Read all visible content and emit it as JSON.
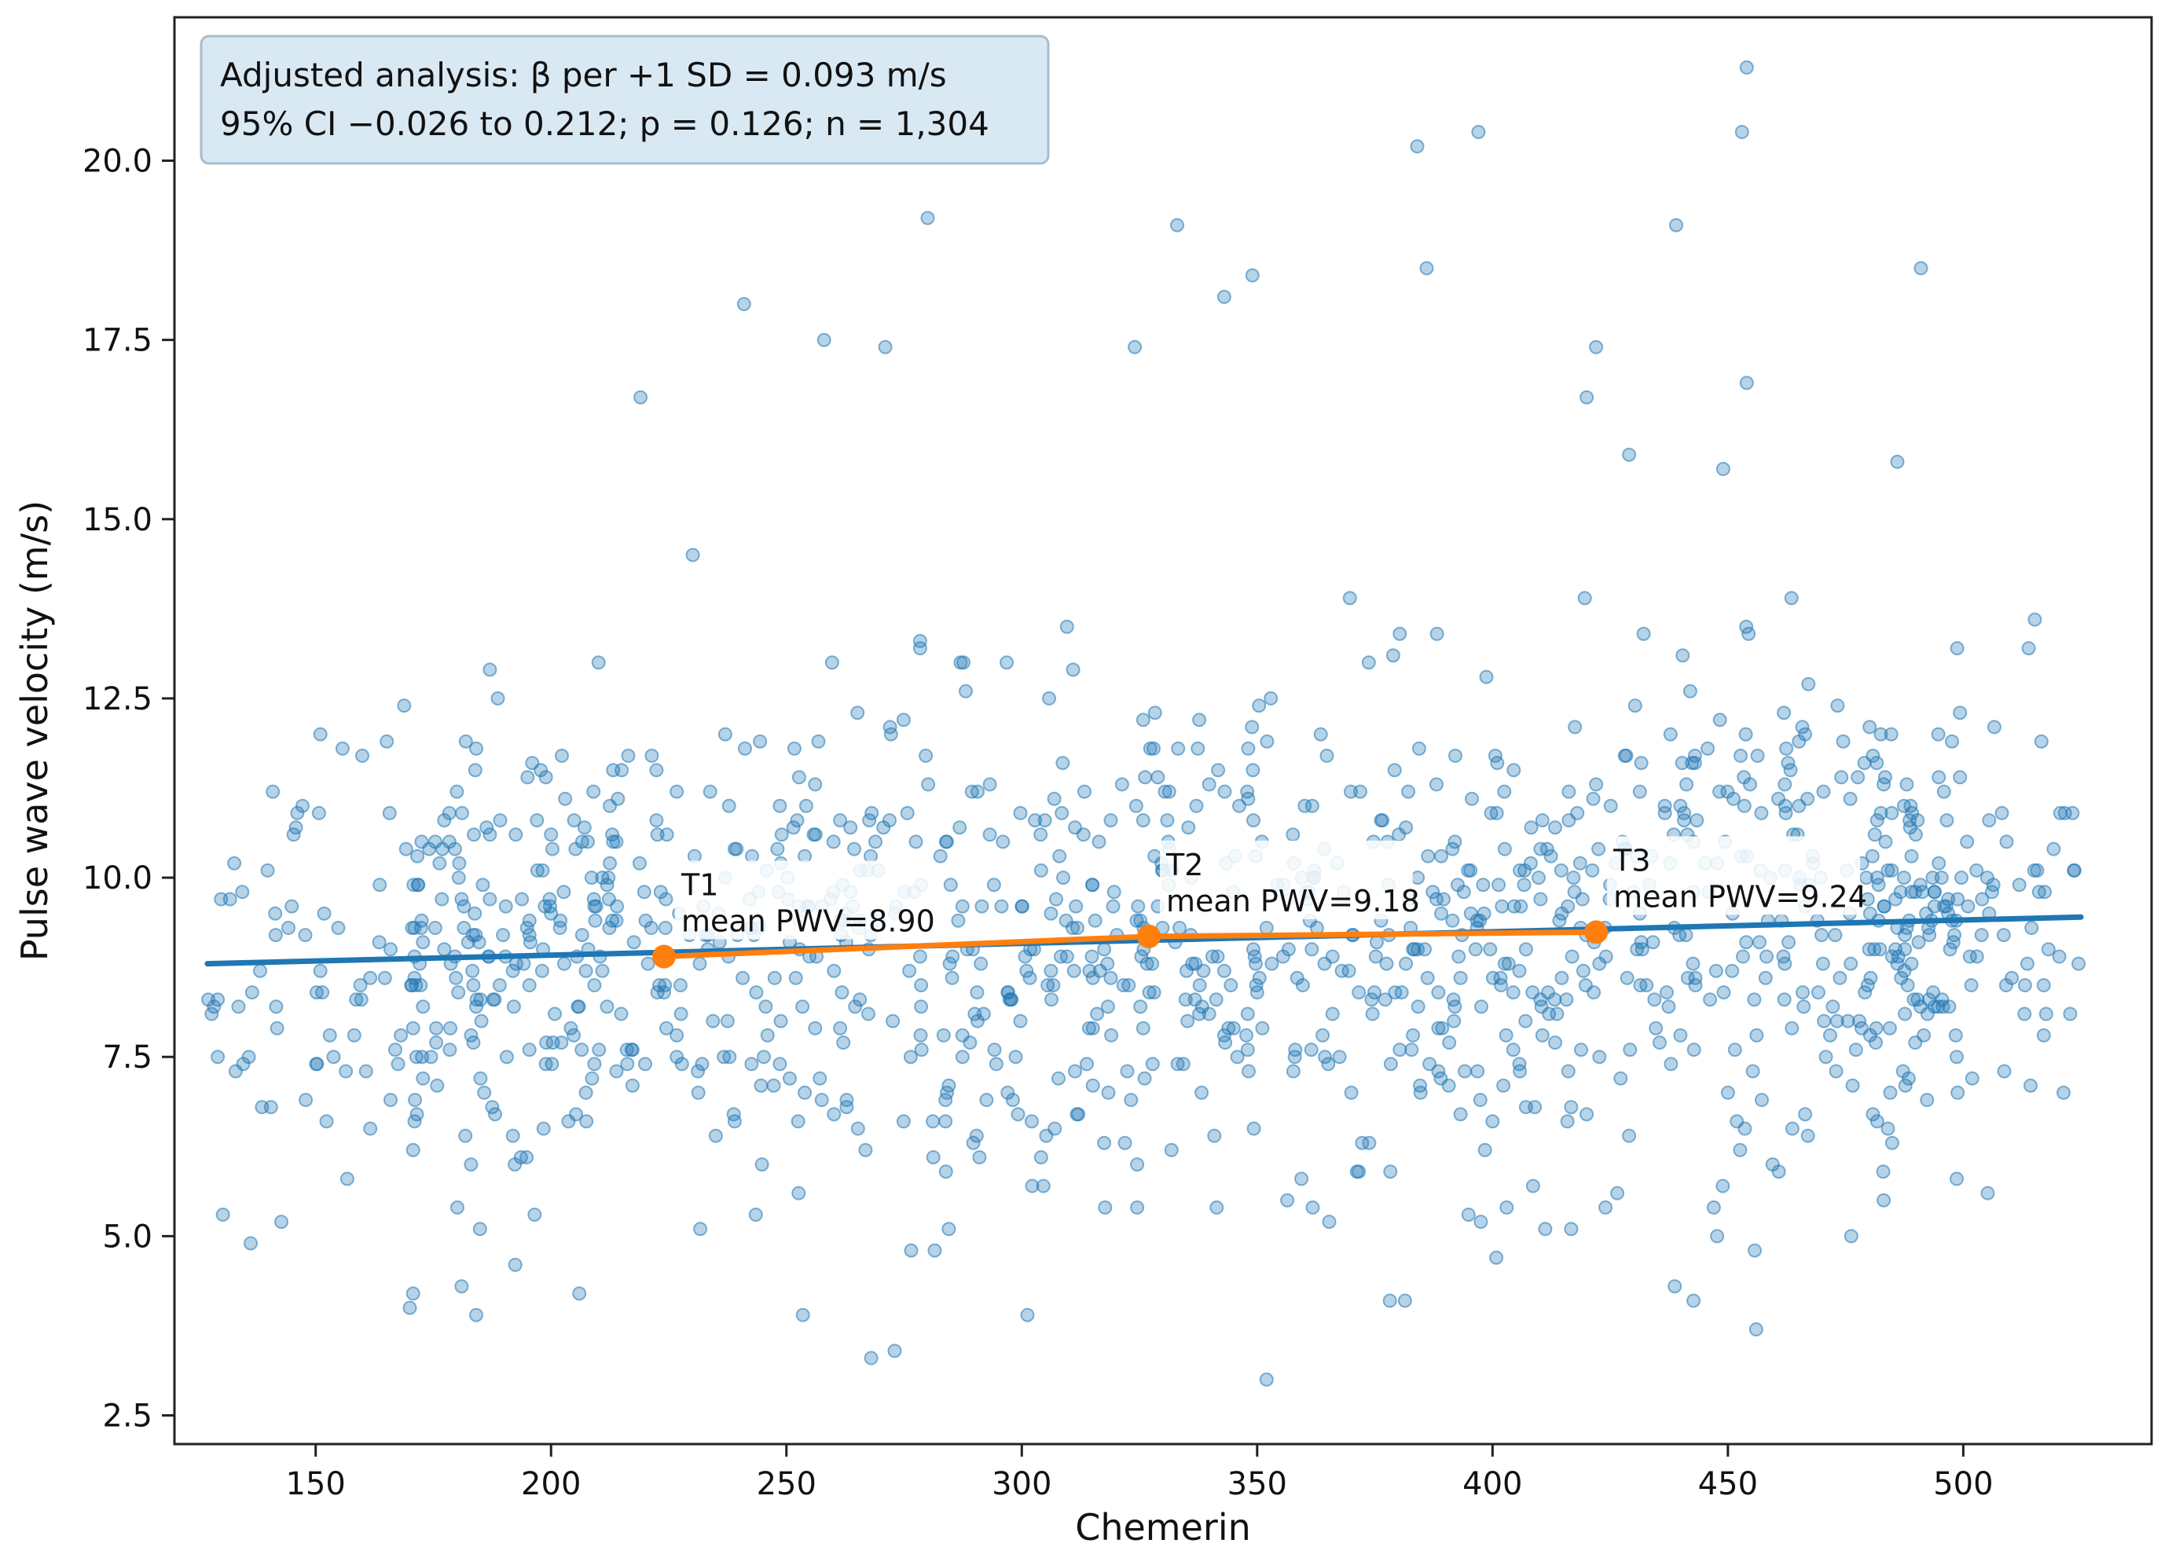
{
  "chart_data": {
    "type": "scatter",
    "xlabel": "Chemerin",
    "ylabel": "Pulse wave velocity (m/s)",
    "xlim": [
      120,
      540
    ],
    "ylim": [
      2.1,
      22.0
    ],
    "x_ticks": [
      150,
      200,
      250,
      300,
      350,
      400,
      450,
      500
    ],
    "x_tick_labels": [
      "150",
      "200",
      "250",
      "300",
      "350",
      "400",
      "450",
      "500"
    ],
    "y_ticks": [
      2.5,
      5.0,
      7.5,
      10.0,
      12.5,
      15.0,
      17.5,
      20.0
    ],
    "y_tick_labels": [
      "2.5",
      "5.0",
      "7.5",
      "10.0",
      "12.5",
      "15.0",
      "17.5",
      "20.0"
    ],
    "grid": false,
    "annotation_box": {
      "lines": [
        "Adjusted analysis: β per +1 SD = 0.093 m/s",
        "95% CI −0.026 to 0.212; p = 0.126; n = 1,304"
      ]
    },
    "regression_line": {
      "x": [
        127,
        525
      ],
      "y": [
        8.8,
        9.45
      ],
      "color": "#1f77b4"
    },
    "tertile_means": {
      "color": "#ff7f0e",
      "points": [
        {
          "label": "T1",
          "text": "mean PWV=8.90",
          "x": 224,
          "y": 8.9
        },
        {
          "label": "T2",
          "text": "mean PWV=9.18",
          "x": 327,
          "y": 9.18
        },
        {
          "label": "T3",
          "text": "mean PWV=9.24",
          "x": 422,
          "y": 9.24
        }
      ]
    },
    "scatter": {
      "color": "#1f77b4",
      "n": 1304,
      "x_range": [
        127,
        525
      ],
      "outliers": [
        {
          "x": 183,
          "y": 20.1
        },
        {
          "x": 241,
          "y": 18.0
        },
        {
          "x": 258,
          "y": 17.5
        },
        {
          "x": 271,
          "y": 17.4
        },
        {
          "x": 280,
          "y": 19.2
        },
        {
          "x": 324,
          "y": 17.4
        },
        {
          "x": 333,
          "y": 19.1
        },
        {
          "x": 343,
          "y": 18.1
        },
        {
          "x": 349,
          "y": 18.4
        },
        {
          "x": 384,
          "y": 20.2
        },
        {
          "x": 386,
          "y": 18.5
        },
        {
          "x": 397,
          "y": 20.4
        },
        {
          "x": 420,
          "y": 16.7
        },
        {
          "x": 422,
          "y": 17.4
        },
        {
          "x": 429,
          "y": 15.9
        },
        {
          "x": 439,
          "y": 19.1
        },
        {
          "x": 449,
          "y": 15.7
        },
        {
          "x": 453,
          "y": 20.4
        },
        {
          "x": 454,
          "y": 21.3
        },
        {
          "x": 454,
          "y": 16.9
        },
        {
          "x": 491,
          "y": 18.5
        },
        {
          "x": 486,
          "y": 15.8
        },
        {
          "x": 219,
          "y": 16.7
        },
        {
          "x": 352,
          "y": 3.0
        },
        {
          "x": 268,
          "y": 3.3
        },
        {
          "x": 273,
          "y": 3.4
        },
        {
          "x": 456,
          "y": 3.7
        },
        {
          "x": 170,
          "y": 4.0
        },
        {
          "x": 206,
          "y": 4.2
        }
      ]
    }
  }
}
